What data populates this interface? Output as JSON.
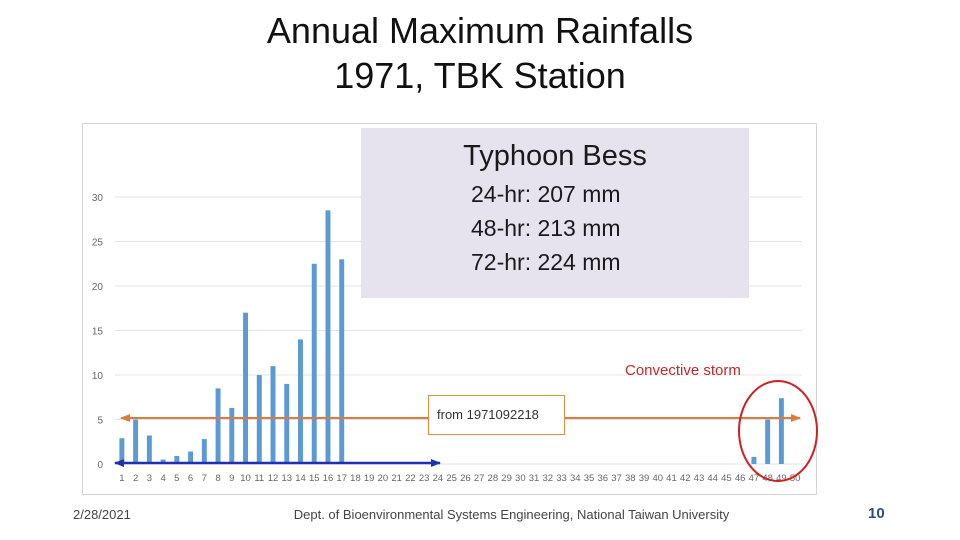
{
  "header": {
    "title_line1": "Annual Maximum Rainfalls",
    "title_line2": "1971, TBK Station"
  },
  "callout": {
    "title": "Typhoon Bess",
    "line1": "24-hr: 207 mm",
    "line2": "48-hr: 213 mm",
    "line3": "72-hr: 224 mm",
    "background_color": "#e6e2ee"
  },
  "annotations": {
    "from_label": "from 1971092218",
    "convective_label": "Convective storm",
    "arrow_orange_color": "#e07a3a",
    "arrow_blue_color": "#2030b0",
    "ellipse_color": "#d02020"
  },
  "footer": {
    "date": "2/28/2021",
    "department": "Dept. of Bioenvironmental Systems Engineering, National Taiwan University",
    "page_number": "10"
  },
  "chart_data": {
    "type": "bar",
    "categories": [
      "1",
      "2",
      "3",
      "4",
      "5",
      "6",
      "7",
      "8",
      "9",
      "10",
      "11",
      "12",
      "13",
      "14",
      "15",
      "16",
      "17",
      "18",
      "19",
      "20",
      "21",
      "22",
      "23",
      "24",
      "25",
      "26",
      "27",
      "28",
      "29",
      "30",
      "31",
      "32",
      "33",
      "34",
      "35",
      "36",
      "37",
      "38",
      "39",
      "40",
      "41",
      "42",
      "43",
      "44",
      "45",
      "46",
      "47",
      "48",
      "49",
      "50"
    ],
    "values": [
      2.9,
      5,
      3.2,
      0.5,
      0.9,
      1.4,
      2.8,
      8.5,
      6.3,
      17,
      10,
      11,
      9,
      14,
      22.5,
      28.5,
      23,
      0,
      0,
      0,
      0,
      0,
      0,
      0,
      0,
      0,
      0,
      0,
      0,
      0,
      0,
      0,
      0,
      0,
      0,
      0,
      0,
      0,
      0,
      0,
      0,
      0,
      0,
      0,
      0,
      0,
      0.8,
      5,
      7.4,
      0
    ],
    "yticks": [
      "0",
      "5",
      "10",
      "15",
      "20",
      "25",
      "30"
    ],
    "ylim": [
      0,
      30
    ],
    "xlabel": "",
    "ylabel": "",
    "title": "",
    "bar_color": "#5b9bd5",
    "grid": true
  }
}
